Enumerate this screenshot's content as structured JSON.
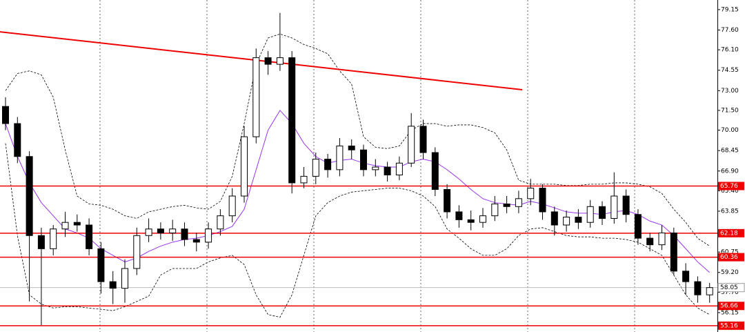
{
  "chart_data": {
    "type": "candlestick",
    "ylim": [
      54.68,
      79.88
    ],
    "yticks": [
      79.15,
      {
        "value": 77.6,
        "label": "77.60"
      },
      {
        "value": 76.1,
        "label": "76.10"
      },
      74.55,
      {
        "value": 73,
        "label": "73.00"
      },
      {
        "value": 71.5,
        "label": "71.50"
      },
      {
        "value": 70,
        "label": "70.00"
      },
      68.45,
      {
        "value": 66.9,
        "label": "66.90"
      },
      {
        "value": 65.4,
        "label": "65.40"
      },
      63.85,
      60.75,
      {
        "value": 59.2,
        "label": "59.20"
      },
      {
        "value": 57.7,
        "label": "57.70"
      },
      56.15
    ],
    "open": [
      71.8,
      70.5,
      68,
      62,
      61,
      62.5,
      63,
      62.8,
      61,
      58.5,
      58,
      59.5,
      62,
      62.5,
      62.2,
      62.5,
      61.7,
      61.5,
      62.5,
      63.5,
      65,
      69.5,
      75.5,
      75,
      75.5,
      66,
      66.5,
      67.8,
      67,
      68.8,
      68.5,
      67,
      67.2,
      66.6,
      67.5,
      70.3,
      68.3,
      65.5,
      63.8,
      63.2,
      63,
      63.5,
      64.4,
      64.2,
      64.8,
      65.6,
      63.8,
      62.8,
      63.4,
      63,
      64.2,
      63.3,
      65,
      63.6,
      61.8,
      61.3,
      62.2,
      59.3,
      58.5,
      57.5
    ],
    "high": [
      72.5,
      71,
      68.4,
      62.6,
      62.8,
      63.8,
      63.6,
      63.3,
      61.5,
      59.3,
      60.2,
      62.6,
      63.3,
      63,
      63.2,
      63,
      62.2,
      63,
      64,
      65.6,
      70.3,
      76.2,
      76,
      78.9,
      76,
      67.2,
      68.3,
      68.2,
      69.4,
      69.3,
      68.9,
      67.8,
      67.6,
      68,
      71.3,
      70.8,
      68.7,
      65.9,
      64.3,
      63.9,
      64.1,
      65,
      65,
      65.4,
      66.3,
      65.9,
      64.2,
      63.9,
      64,
      64.7,
      64.6,
      66.8,
      65.5,
      64,
      62.2,
      62.8,
      62.6,
      59.9,
      58.9,
      58.4
    ],
    "low": [
      70,
      67.5,
      57,
      55.2,
      60.5,
      61.9,
      62.3,
      60.5,
      57.6,
      56.8,
      56.9,
      59,
      61.5,
      61.7,
      61.6,
      61.2,
      60.8,
      61,
      62,
      63,
      64.5,
      69,
      74.2,
      74.5,
      65.2,
      65.6,
      65.9,
      66.4,
      66.5,
      67.8,
      66.5,
      66.5,
      66.1,
      66.2,
      67.2,
      67.8,
      65,
      63.3,
      62.6,
      62.4,
      62.6,
      63.1,
      63.7,
      63.7,
      64.3,
      63.2,
      62,
      62.3,
      62.5,
      62.6,
      62.8,
      62.9,
      63,
      61.3,
      60.8,
      60.9,
      59,
      57.5,
      56.9,
      56.9
    ],
    "close": [
      70.5,
      68,
      62,
      61,
      62.5,
      63,
      62.8,
      61,
      58.5,
      58,
      59.5,
      62,
      62.5,
      62.2,
      62.5,
      61.7,
      61.5,
      62.5,
      63.5,
      65,
      69.5,
      75.5,
      75,
      75.5,
      66,
      66.5,
      67.8,
      67,
      68.8,
      68.5,
      67,
      67.2,
      66.6,
      67.5,
      70.3,
      68.3,
      65.5,
      63.8,
      63.2,
      63,
      63.5,
      64.4,
      64.2,
      64.8,
      65.6,
      63.8,
      62.8,
      63.4,
      63,
      64.2,
      63.3,
      65,
      63.6,
      61.8,
      61.3,
      62.2,
      59.3,
      58.5,
      57.5,
      58.05
    ],
    "bands": [
      {
        "name": "upper",
        "color": "#000000",
        "values": [
          73,
          74.3,
          74.5,
          74.2,
          72.5,
          68.5,
          65,
          64.4,
          64.3,
          64,
          63.5,
          63.3,
          63.8,
          64,
          64.2,
          64.3,
          64.1,
          64,
          64.6,
          66.5,
          70.5,
          75,
          77,
          77.3,
          77,
          76.5,
          76.2,
          75.8,
          74.5,
          73.5,
          69.5,
          68.7,
          68.6,
          68.8,
          70,
          70.5,
          70.5,
          70.3,
          70.4,
          70.4,
          70.2,
          69.8,
          68.5,
          66.2,
          65.9,
          65.9,
          65.9,
          65.8,
          65.8,
          65.9,
          65.9,
          66,
          66,
          65.9,
          65.7,
          65.2,
          64,
          63,
          61.8,
          61.2
        ]
      },
      {
        "name": "middle",
        "color": "#9933ee",
        "values": [
          70.5,
          68,
          66,
          64.5,
          63.5,
          62.5,
          62.2,
          61.8,
          61,
          60.5,
          60,
          60.3,
          60.8,
          61.2,
          61.5,
          61.7,
          61.8,
          62,
          62.3,
          62.7,
          64,
          67,
          70,
          71.5,
          70.5,
          69,
          68,
          67.5,
          67.7,
          67.8,
          67.5,
          67.3,
          67.2,
          67.2,
          67.6,
          67.8,
          67.6,
          67,
          66.3,
          65.5,
          64.8,
          64.5,
          64.4,
          64.3,
          64.6,
          64.4,
          64.1,
          63.8,
          63.7,
          63.7,
          63.6,
          63.8,
          63.9,
          63.6,
          63.1,
          62.8,
          62,
          61,
          60,
          59.2
        ]
      },
      {
        "name": "lower",
        "color": "#000000",
        "values": [
          69,
          62,
          57.5,
          56.8,
          56.5,
          56.6,
          56.6,
          56.5,
          56.4,
          56.3,
          56.6,
          57,
          57.4,
          59,
          59.5,
          59.5,
          59.5,
          60,
          60.3,
          60.5,
          59.8,
          57.5,
          56,
          55.8,
          57.5,
          60.5,
          63.5,
          64.5,
          65,
          65.3,
          65.4,
          65.5,
          65.6,
          65.6,
          65.4,
          65,
          64.2,
          62.5,
          61.8,
          61,
          60.5,
          60.5,
          61,
          62,
          62.5,
          62.6,
          62.3,
          62,
          61.9,
          61.9,
          61.8,
          61.8,
          61.7,
          61.5,
          61,
          60.5,
          59,
          57.5,
          56.5,
          56
        ]
      }
    ],
    "levels": [
      65.76,
      62.18,
      60.36,
      56.66,
      55.16
    ],
    "level_color": "#ee0000",
    "current_price": 58.05,
    "trendline": {
      "x": [
        -0.5,
        43.3
      ],
      "y": [
        77.47,
        73.07
      ],
      "color": "#ee0000"
    }
  }
}
